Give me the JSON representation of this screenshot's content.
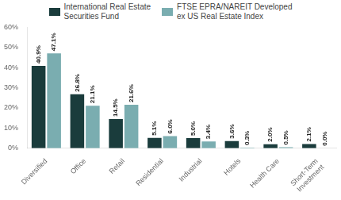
{
  "chart_data": {
    "type": "bar",
    "categories": [
      "Diversified",
      "Office",
      "Retail",
      "Residential",
      "Industrial",
      "Hotels",
      "Health Care",
      "Short-Term\nInvestment"
    ],
    "series": [
      {
        "name": "International Real Estate\nSecurities Fund",
        "color": "#1a3c3c",
        "values": [
          40.9,
          26.8,
          14.5,
          5.1,
          5.0,
          3.6,
          2.0,
          2.1
        ],
        "value_labels": [
          "40.9%",
          "26.8%",
          "14.5%",
          "5.1%",
          "5.0%",
          "3.6%",
          "2.0%",
          "2.1%"
        ]
      },
      {
        "name": "FTSE EPRA/NAREIT Developed\nex US Real Estate Index",
        "color": "#7aadb0",
        "values": [
          47.1,
          21.1,
          21.6,
          6.0,
          3.4,
          0.3,
          0.5,
          0.0
        ],
        "value_labels": [
          "47.1%",
          "21.1%",
          "21.6%",
          "6.0%",
          "3.4%",
          "0.3%",
          "0.5%",
          "0.0%"
        ]
      }
    ],
    "ylim": [
      0,
      60
    ],
    "yticks": [
      {
        "value": 0,
        "label": "0%"
      },
      {
        "value": 10,
        "label": "10%"
      },
      {
        "value": 20,
        "label": "20%"
      },
      {
        "value": 30,
        "label": "30%"
      },
      {
        "value": 40,
        "label": "40%"
      },
      {
        "value": 50,
        "label": "50%"
      },
      {
        "value": 60,
        "label": "60%"
      }
    ],
    "grid": false,
    "legend": "top",
    "data_labels": true
  }
}
